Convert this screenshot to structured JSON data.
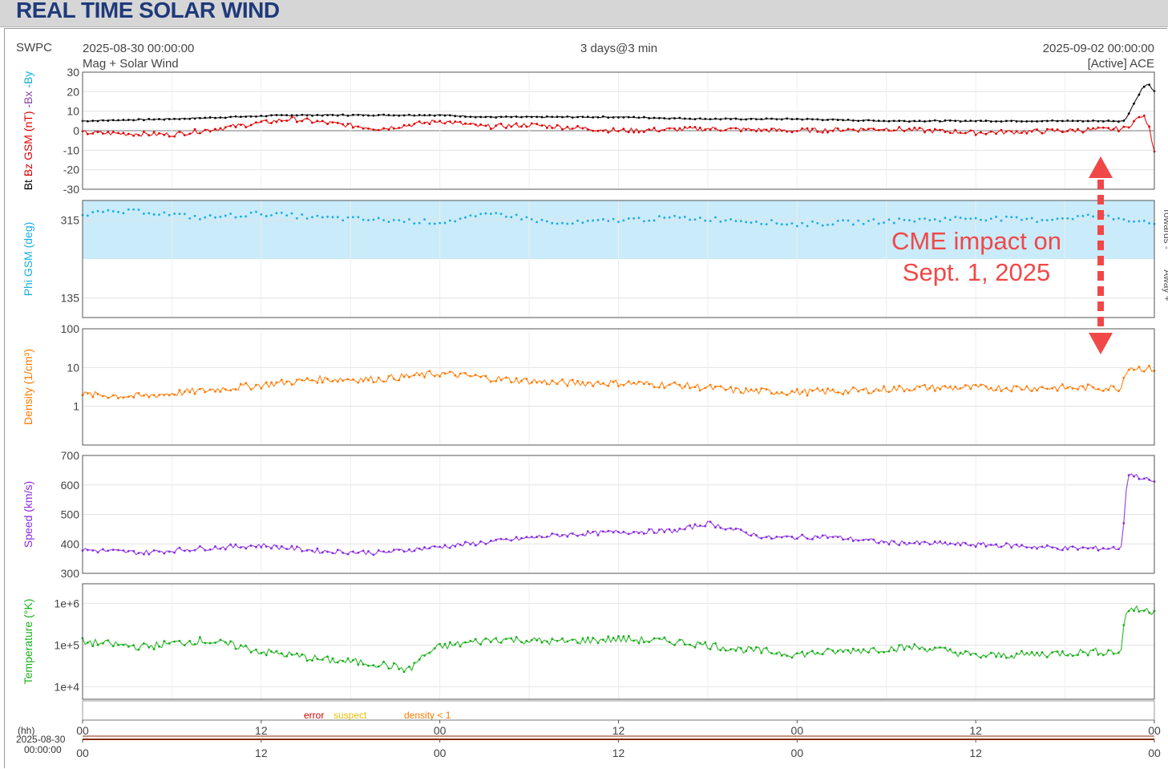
{
  "page_title": "REAL TIME SOLAR WIND",
  "header": {
    "source": "SWPC",
    "start": "2025-08-30 00:00:00",
    "subtitle_left": "Mag + Solar Wind",
    "span": "3 days@3 min",
    "end": "2025-09-02 00:00:00",
    "spacecraft": "[Active] ACE"
  },
  "annotation": {
    "line1": "CME impact on",
    "line2": "Sept. 1, 2025",
    "color": "#f04848"
  },
  "legend": {
    "error": "error",
    "suspect": "suspect",
    "density": "density < 1",
    "error_color": "#cc0000",
    "suspect_color": "#e8c000",
    "density_color": "#ff7a00"
  },
  "time_axis": {
    "tick_labels": [
      "00",
      "12",
      "00",
      "12",
      "00",
      "12",
      "00"
    ],
    "unit_label": "(hh)",
    "date_label": "2025-08-30",
    "time_label": "00:00:00"
  },
  "chart_data": [
    {
      "type": "line",
      "name": "mag",
      "xlabel": "",
      "ylabel_parts": [
        {
          "text": "Bt",
          "color": "#000000"
        },
        {
          "text": "Bz GSM (nT)",
          "color": "#e00000"
        },
        {
          "text": "-Bx",
          "color": "#8e44ad"
        },
        {
          "text": "-By",
          "color": "#17aee0"
        }
      ],
      "ylim": [
        -30,
        30
      ],
      "yticks": [
        30,
        20,
        10,
        0,
        -10,
        -20,
        -30
      ],
      "ytick_labels": [
        "30",
        "20",
        "10",
        "0",
        "-10",
        "-20",
        "-30"
      ],
      "x_hours": [
        0,
        6,
        10,
        14,
        20,
        24,
        27,
        30,
        36,
        42,
        48,
        54,
        60,
        66,
        70,
        71.2,
        71.6,
        72
      ],
      "series": [
        {
          "name": "Bt",
          "color": "#000000",
          "values": [
            5,
            6,
            7,
            8,
            8,
            8,
            7,
            7,
            7,
            6,
            6,
            5,
            5,
            5,
            5,
            22,
            24,
            20
          ]
        },
        {
          "name": "Bz",
          "color": "#e00000",
          "values": [
            -1,
            -2,
            2,
            6,
            1,
            5,
            2,
            3,
            0,
            1,
            0,
            1,
            -1,
            0,
            1,
            8,
            3,
            -10
          ]
        }
      ]
    },
    {
      "type": "scatter",
      "name": "phi",
      "ylabel": "Phi GSM (deg)",
      "ylabel_color": "#17aee0",
      "ylim": [
        90,
        360
      ],
      "yticks": [
        315,
        135
      ],
      "ytick_labels": [
        "315",
        "135"
      ],
      "right_labels": [
        "Towards -",
        "Away +"
      ],
      "x_hours": [
        0,
        4,
        8,
        12,
        16,
        20,
        24,
        28,
        32,
        36,
        40,
        44,
        48,
        52,
        56,
        60,
        64,
        68,
        72
      ],
      "series": [
        {
          "name": "Phi",
          "color": "#17aee0",
          "values": [
            330,
            335,
            320,
            330,
            320,
            315,
            310,
            330,
            305,
            315,
            320,
            315,
            305,
            310,
            315,
            320,
            315,
            325,
            310
          ]
        }
      ]
    },
    {
      "type": "line",
      "name": "density",
      "ylabel": "Density (1/cm³)",
      "ylabel_color": "#ff7a00",
      "scale": "log",
      "ylim": [
        0.1,
        100
      ],
      "yticks": [
        100,
        10,
        1
      ],
      "ytick_labels": [
        "100",
        "10",
        "1"
      ],
      "x_hours": [
        0,
        4,
        8,
        12,
        16,
        20,
        24,
        28,
        32,
        36,
        40,
        44,
        48,
        52,
        56,
        60,
        64,
        68,
        69.8,
        70.2,
        72
      ],
      "series": [
        {
          "name": "Density",
          "color": "#ff7a00",
          "values": [
            2,
            1.8,
            2.5,
            3.5,
            5,
            5,
            7,
            5,
            4,
            4,
            3.5,
            2.5,
            2.3,
            2.5,
            3,
            3,
            3,
            3,
            3,
            10,
            9
          ]
        }
      ]
    },
    {
      "type": "line",
      "name": "speed",
      "ylabel": "Speed (km/s)",
      "ylabel_color": "#8a2be2",
      "ylim": [
        300,
        700
      ],
      "yticks": [
        700,
        600,
        500,
        400,
        300
      ],
      "ytick_labels": [
        "700",
        "600",
        "500",
        "400",
        "300"
      ],
      "x_hours": [
        0,
        4,
        8,
        12,
        16,
        20,
        24,
        28,
        32,
        36,
        40,
        42,
        46,
        50,
        54,
        58,
        62,
        66,
        69.8,
        70.2,
        72
      ],
      "series": [
        {
          "name": "Speed",
          "color": "#8a2be2",
          "values": [
            380,
            370,
            385,
            395,
            375,
            370,
            390,
            410,
            430,
            440,
            445,
            470,
            420,
            425,
            405,
            400,
            395,
            385,
            385,
            640,
            610
          ]
        }
      ]
    },
    {
      "type": "line",
      "name": "temperature",
      "ylabel": "Temperature (°K)",
      "ylabel_color": "#19b019",
      "scale": "log",
      "ylim": [
        5000,
        3000000
      ],
      "yticks": [
        1000000,
        100000,
        10000
      ],
      "ytick_labels": [
        "1e+6",
        "1e+5",
        "1e+4"
      ],
      "x_hours": [
        0,
        4,
        8,
        12,
        16,
        20,
        22,
        24,
        28,
        32,
        36,
        40,
        44,
        48,
        52,
        56,
        60,
        64,
        68,
        69.8,
        70.2,
        72
      ],
      "series": [
        {
          "name": "Temperature",
          "color": "#19b019",
          "values": [
            120000,
            90000,
            130000,
            70000,
            45000,
            35000,
            25000,
            90000,
            140000,
            120000,
            140000,
            120000,
            80000,
            60000,
            75000,
            90000,
            55000,
            60000,
            70000,
            70000,
            750000,
            650000
          ]
        }
      ]
    }
  ]
}
